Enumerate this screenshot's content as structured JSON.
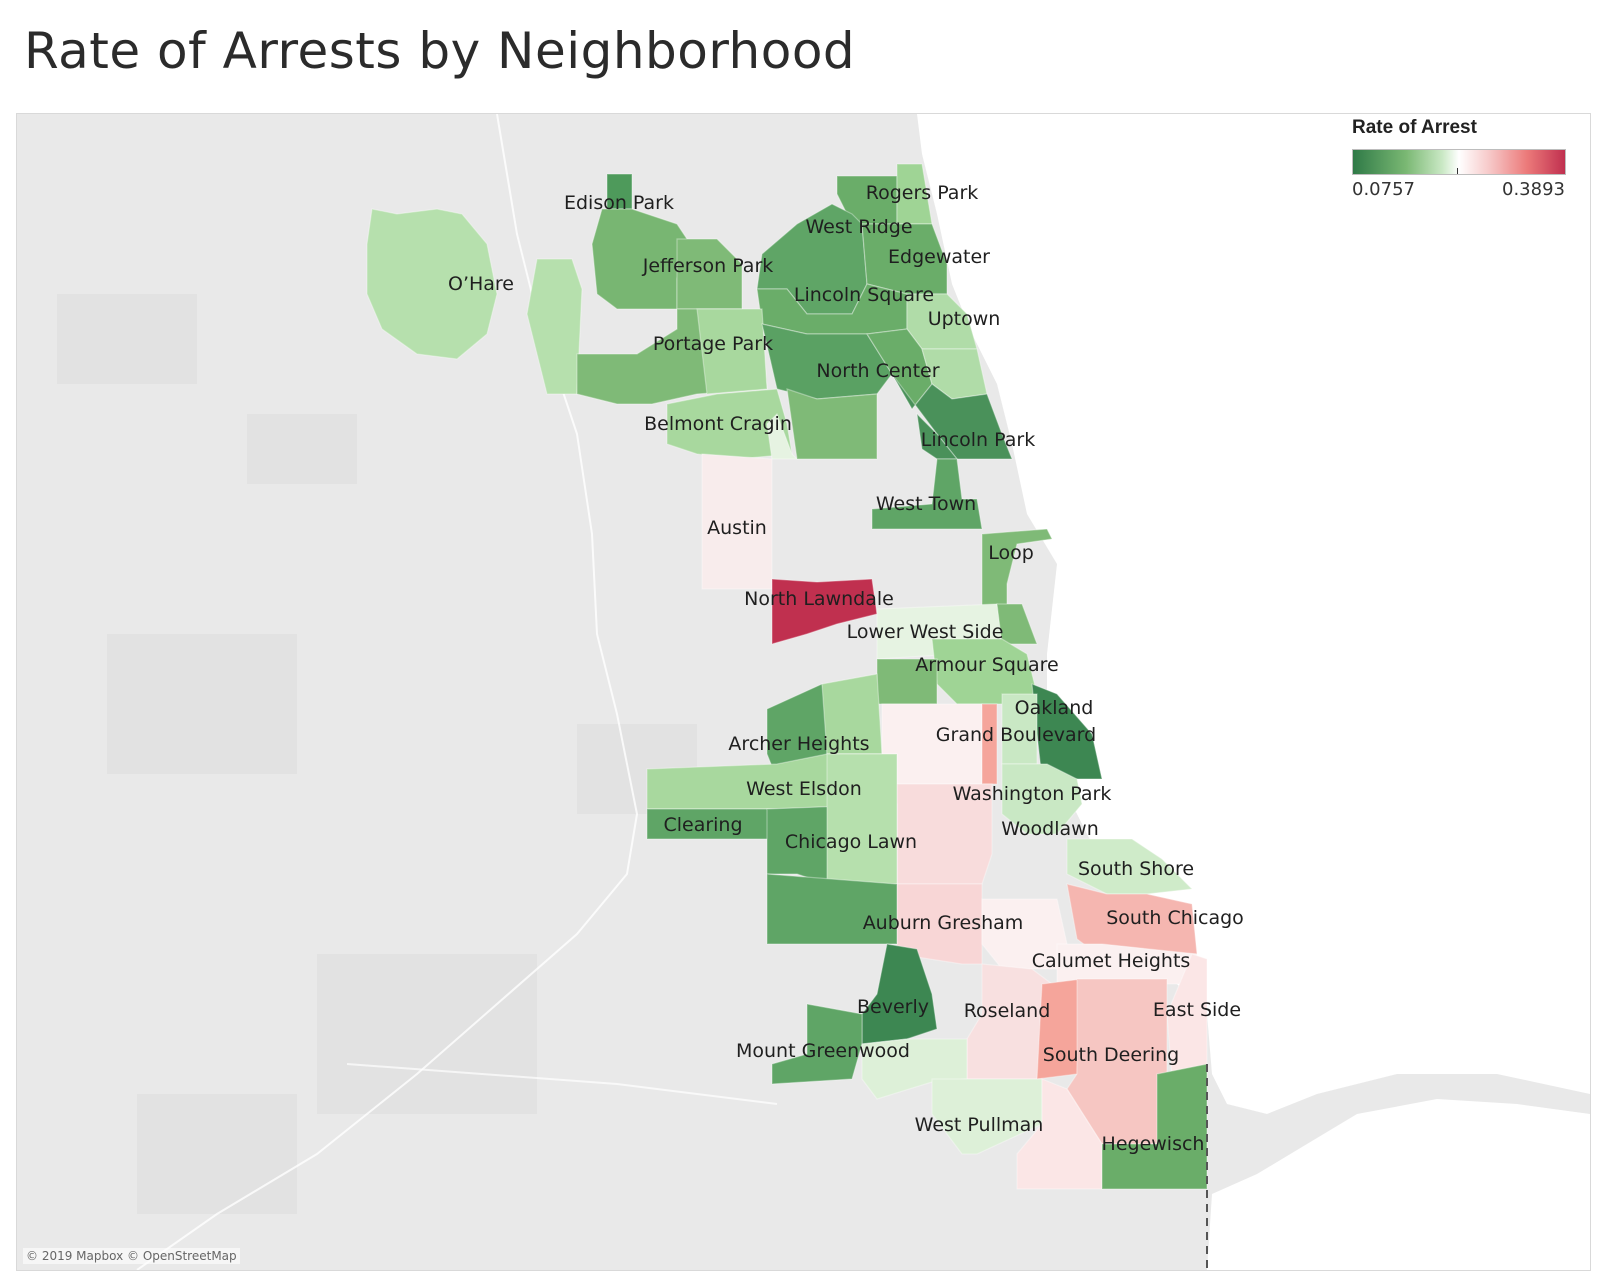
{
  "title": "Rate of Arrests by Neighborhood",
  "legend": {
    "title": "Rate of Arrest",
    "min_label": "0.0757",
    "max_label": "0.3893",
    "colors": [
      "#2f7a47",
      "#7ab873",
      "#c9e8c4",
      "#ffffff",
      "#f6c6c6",
      "#ec7a7a",
      "#c0304f"
    ]
  },
  "attribution": "© 2019 Mapbox © OpenStreetMap",
  "neighborhoods": [
    {
      "name": "Edison Park",
      "color": "#4e9a5b"
    },
    {
      "name": "Rogers Park",
      "color": "#9fd495"
    },
    {
      "name": "West Ridge",
      "color": "#5fa566"
    },
    {
      "name": "Edgewater",
      "color": "#6aad69"
    },
    {
      "name": "O'Hare",
      "color": "#b6e0ad"
    },
    {
      "name": "Jefferson Park",
      "color": "#78b672"
    },
    {
      "name": "Lincoln Square",
      "color": "#6aad69"
    },
    {
      "name": "Uptown",
      "color": "#b0dca8"
    },
    {
      "name": "Portage Park",
      "color": "#7fba77"
    },
    {
      "name": "North Center",
      "color": "#5aa163"
    },
    {
      "name": "Belmont Cragin",
      "color": "#a8d89e"
    },
    {
      "name": "Lincoln Park",
      "color": "#4a915a"
    },
    {
      "name": "West Town",
      "color": "#5fa566"
    },
    {
      "name": "Austin",
      "color": "#f8ecec"
    },
    {
      "name": "Loop",
      "color": "#7fba77"
    },
    {
      "name": "North Lawndale",
      "color": "#c0304f"
    },
    {
      "name": "Lower West Side",
      "color": "#e6f3e2"
    },
    {
      "name": "Armour Square",
      "color": "#9fd495"
    },
    {
      "name": "Oakland",
      "color": "#3d8752"
    },
    {
      "name": "Archer Heights",
      "color": "#5fa566"
    },
    {
      "name": "Grand Boulevard",
      "color": "#f5a59b"
    },
    {
      "name": "West Elsdon",
      "color": "#a8d89e"
    },
    {
      "name": "Washington Park",
      "color": "#f8dcdc"
    },
    {
      "name": "Clearing",
      "color": "#5fa566"
    },
    {
      "name": "Woodlawn",
      "color": "#c9e8c4"
    },
    {
      "name": "Chicago Lawn",
      "color": "#b6e0ad"
    },
    {
      "name": "South Shore",
      "color": "#cfebc9"
    },
    {
      "name": "Auburn Gresham",
      "color": "#f8d6d6"
    },
    {
      "name": "South Chicago",
      "color": "#f5b6b0"
    },
    {
      "name": "Calumet Heights",
      "color": "#fbf0f0"
    },
    {
      "name": "Beverly",
      "color": "#3d8752"
    },
    {
      "name": "Roseland",
      "color": "#f8e0e0"
    },
    {
      "name": "East Side",
      "color": "#fbe6e6"
    },
    {
      "name": "South Deering",
      "color": "#f6c6c2"
    },
    {
      "name": "Mount Greenwood",
      "color": "#5fa566"
    },
    {
      "name": "West Pullman",
      "color": "#ddf0d8"
    },
    {
      "name": "Hegewisch",
      "color": "#6aad69"
    }
  ]
}
